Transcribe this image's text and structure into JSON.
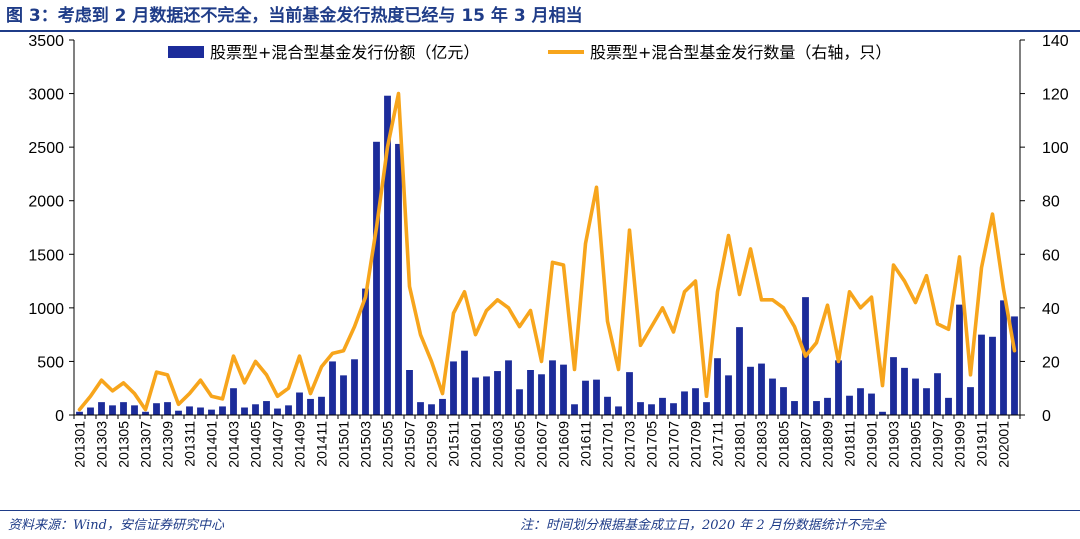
{
  "figure": {
    "title": "图 3：考虑到 2 月数据还不完全，当前基金发行热度已经与 15 年 3 月相当",
    "source": "资料来源：Wind，安信证券研究中心",
    "note": "注：时间划分根据基金成立日，2020 年 2 月份数据统计不完全"
  },
  "colors": {
    "bar": "#1c2c9a",
    "line": "#f7a51c",
    "title": "#1f3c88",
    "axis": "#000000"
  },
  "chart_data": {
    "type": "bar",
    "title": "",
    "categories": [
      "201301",
      "201302",
      "201303",
      "201304",
      "201305",
      "201306",
      "201307",
      "201308",
      "201309",
      "201310",
      "201311",
      "201312",
      "201401",
      "201402",
      "201403",
      "201404",
      "201405",
      "201406",
      "201407",
      "201408",
      "201409",
      "201410",
      "201411",
      "201412",
      "201501",
      "201502",
      "201503",
      "201504",
      "201505",
      "201506",
      "201507",
      "201508",
      "201509",
      "201510",
      "201511",
      "201512",
      "201601",
      "201602",
      "201603",
      "201604",
      "201605",
      "201606",
      "201607",
      "201608",
      "201609",
      "201610",
      "201611",
      "201612",
      "201701",
      "201702",
      "201703",
      "201704",
      "201705",
      "201706",
      "201707",
      "201708",
      "201709",
      "201710",
      "201711",
      "201712",
      "201801",
      "201802",
      "201803",
      "201804",
      "201805",
      "201806",
      "201807",
      "201808",
      "201809",
      "201810",
      "201811",
      "201812",
      "201901",
      "201902",
      "201903",
      "201904",
      "201905",
      "201906",
      "201907",
      "201908",
      "201909",
      "201910",
      "201911",
      "201912",
      "202001",
      "202002"
    ],
    "tick_labels": [
      "201301",
      "201303",
      "201305",
      "201307",
      "201309",
      "201311",
      "201401",
      "201403",
      "201405",
      "201407",
      "201409",
      "201411",
      "201501",
      "201503",
      "201505",
      "201507",
      "201509",
      "201511",
      "201601",
      "201603",
      "201605",
      "201607",
      "201609",
      "201611",
      "201701",
      "201703",
      "201705",
      "201707",
      "201709",
      "201711",
      "201801",
      "201803",
      "201805",
      "201807",
      "201809",
      "201811",
      "201901",
      "201903",
      "201905",
      "201907",
      "201909",
      "201911",
      "202001"
    ],
    "series": [
      {
        "name": "股票型+混合型基金发行份额（亿元）",
        "type": "bar",
        "axis": "left",
        "values": [
          30,
          70,
          120,
          90,
          120,
          90,
          30,
          110,
          120,
          40,
          80,
          70,
          50,
          80,
          250,
          70,
          100,
          130,
          60,
          90,
          210,
          150,
          170,
          500,
          370,
          520,
          1180,
          2550,
          2980,
          2530,
          420,
          120,
          100,
          150,
          500,
          600,
          350,
          360,
          410,
          510,
          240,
          420,
          380,
          510,
          470,
          100,
          320,
          330,
          170,
          80,
          400,
          120,
          100,
          160,
          110,
          220,
          250,
          120,
          530,
          370,
          820,
          450,
          480,
          340,
          260,
          130,
          1100,
          130,
          160,
          510,
          180,
          250,
          200,
          30,
          540,
          440,
          340,
          250,
          390,
          160,
          1030,
          260,
          750,
          730,
          1070,
          920
        ]
      },
      {
        "name": "股票型+混合型基金发行数量（右轴，只）",
        "type": "line",
        "axis": "right",
        "values": [
          2,
          7,
          13,
          9,
          12,
          8,
          2,
          16,
          15,
          4,
          8,
          13,
          7,
          6,
          22,
          12,
          20,
          15,
          7,
          10,
          22,
          8,
          18,
          23,
          24,
          33,
          44,
          70,
          100,
          120,
          48,
          30,
          20,
          8,
          38,
          46,
          30,
          39,
          43,
          40,
          33,
          39,
          20,
          57,
          56,
          17,
          64,
          85,
          35,
          17,
          69,
          26,
          33,
          40,
          31,
          46,
          50,
          7,
          46,
          67,
          45,
          62,
          43,
          43,
          40,
          33,
          22,
          27,
          41,
          20,
          46,
          40,
          44,
          11,
          56,
          50,
          42,
          52,
          34,
          32,
          59,
          15,
          55,
          75,
          47,
          24
        ]
      }
    ],
    "y_left": {
      "min": 0,
      "max": 3500,
      "ticks": [
        0,
        500,
        1000,
        1500,
        2000,
        2500,
        3000,
        3500
      ]
    },
    "y_right": {
      "min": 0,
      "max": 140,
      "ticks": [
        0,
        20,
        40,
        60,
        80,
        100,
        120,
        140
      ]
    },
    "legend": "top",
    "grid": false
  }
}
